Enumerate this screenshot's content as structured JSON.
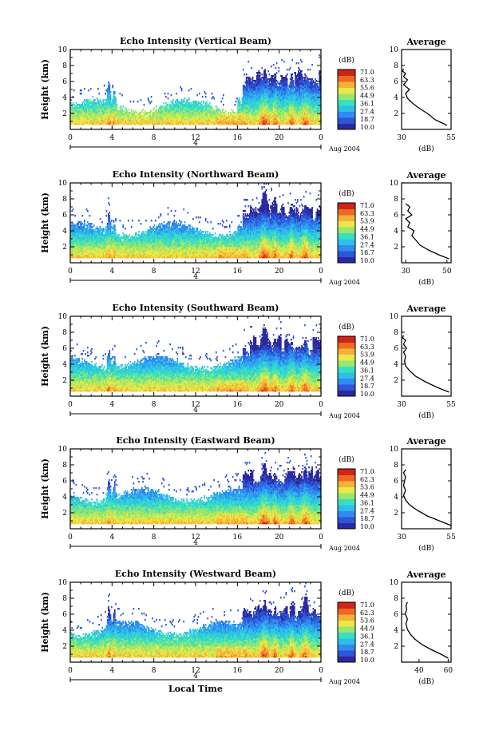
{
  "colors": {
    "colormap": [
      "#2a2a9e",
      "#2f55d8",
      "#2f8cf0",
      "#2ebfe8",
      "#38e0c0",
      "#9be66a",
      "#e8e848",
      "#f6b038",
      "#ee6a22",
      "#d0241a"
    ]
  },
  "chart_data": [
    {
      "type": "heatmap",
      "title": "Echo Intensity (Vertical Beam)",
      "ylabel": "Height (km)",
      "xlabel": "",
      "x_ticks": [
        "0",
        "4",
        "8",
        "12",
        "16",
        "20",
        "0"
      ],
      "y_ticks": [
        "2",
        "4",
        "6",
        "8",
        "10"
      ],
      "xlim": [
        0,
        24
      ],
      "ylim": [
        0,
        10
      ],
      "date_marker": "4",
      "date_label": "Aug 2004",
      "colorbar": {
        "unit": "(dB)",
        "ticks": [
          "71.0",
          "63.3",
          "55.6",
          "44.9",
          "36.1",
          "27.4",
          "18.7",
          "10.0"
        ]
      },
      "profile": {
        "title": "Average",
        "xlabel": "(dB)",
        "x_ticks": [
          "30",
          "55"
        ],
        "xlim": [
          30,
          55
        ],
        "y_ticks": [
          "2",
          "4",
          "6",
          "8",
          "10"
        ],
        "ylim": [
          0,
          10
        ],
        "x": [
          53,
          47,
          43,
          38,
          35,
          33,
          32,
          34,
          31,
          33,
          31,
          32,
          30.5,
          31
        ],
        "y": [
          0.5,
          1.2,
          2.0,
          2.8,
          3.4,
          3.9,
          4.5,
          5.0,
          5.6,
          6.2,
          6.6,
          7.0,
          7.3,
          7.6
        ]
      }
    },
    {
      "type": "heatmap",
      "title": "Echo Intensity (Northward Beam)",
      "ylabel": "Height (km)",
      "xlabel": "",
      "x_ticks": [
        "0",
        "4",
        "8",
        "12",
        "16",
        "20",
        "0"
      ],
      "y_ticks": [
        "2",
        "4",
        "6",
        "8",
        "10"
      ],
      "xlim": [
        0,
        24
      ],
      "ylim": [
        0,
        10
      ],
      "date_marker": "4",
      "date_label": "Aug 2004",
      "colorbar": {
        "unit": "(dB)",
        "ticks": [
          "71.0",
          "63.3",
          "53.9",
          "44.9",
          "36.1",
          "27.4",
          "18.7",
          "10.0"
        ]
      },
      "profile": {
        "title": "Average",
        "xlabel": "(dB)",
        "x_ticks": [
          "30",
          "50"
        ],
        "xlim": [
          28,
          52
        ],
        "y_ticks": [
          "2",
          "4",
          "6",
          "8",
          "10"
        ],
        "ylim": [
          0,
          10
        ],
        "x": [
          51,
          46,
          41,
          37,
          35,
          33,
          34,
          31,
          32,
          30,
          33,
          31,
          32,
          30
        ],
        "y": [
          0.5,
          1.0,
          1.6,
          2.2,
          2.8,
          3.4,
          4.0,
          4.5,
          5.0,
          5.5,
          6.0,
          6.5,
          7.0,
          7.4
        ]
      }
    },
    {
      "type": "heatmap",
      "title": "Echo Intensity (Southward Beam)",
      "ylabel": "Height (km)",
      "xlabel": "",
      "x_ticks": [
        "0",
        "4",
        "8",
        "12",
        "16",
        "20",
        "0"
      ],
      "y_ticks": [
        "2",
        "4",
        "6",
        "8",
        "10"
      ],
      "xlim": [
        0,
        24
      ],
      "ylim": [
        0,
        10
      ],
      "date_marker": "4",
      "date_label": "Aug 2004",
      "colorbar": {
        "unit": "(dB)",
        "ticks": [
          "71.0",
          "63.3",
          "53.9",
          "44.9",
          "36.1",
          "27.4",
          "18.7",
          "10.0"
        ]
      },
      "profile": {
        "title": "Average",
        "xlabel": "(dB)",
        "x_ticks": [
          "30",
          "55"
        ],
        "xlim": [
          30,
          55
        ],
        "y_ticks": [
          "2",
          "4",
          "6",
          "8",
          "10"
        ],
        "ylim": [
          0,
          10
        ],
        "x": [
          54,
          48,
          42,
          37,
          34,
          32,
          31.5,
          32,
          31,
          32.5,
          31,
          32,
          30.5,
          31
        ],
        "y": [
          0.5,
          1.1,
          1.8,
          2.5,
          3.2,
          3.8,
          4.4,
          5.0,
          5.5,
          6.0,
          6.5,
          7.0,
          7.3,
          7.6
        ]
      }
    },
    {
      "type": "heatmap",
      "title": "Echo Intensity (Eastward Beam)",
      "ylabel": "Height (km)",
      "xlabel": "",
      "x_ticks": [
        "0",
        "4",
        "8",
        "12",
        "16",
        "20",
        "0"
      ],
      "y_ticks": [
        "2",
        "4",
        "6",
        "8",
        "10"
      ],
      "xlim": [
        0,
        24
      ],
      "ylim": [
        0,
        10
      ],
      "date_marker": "4",
      "date_label": "Aug 2004",
      "colorbar": {
        "unit": "(dB)",
        "ticks": [
          "71.0",
          "62.3",
          "53.6",
          "44.9",
          "36.1",
          "27.4",
          "18.7",
          "10.0"
        ]
      },
      "profile": {
        "title": "Average",
        "xlabel": "(dB)",
        "x_ticks": [
          "30",
          "55"
        ],
        "xlim": [
          30,
          55
        ],
        "y_ticks": [
          "2",
          "4",
          "6",
          "8",
          "10"
        ],
        "ylim": [
          0,
          10
        ],
        "x": [
          55,
          49,
          43,
          38,
          34,
          32,
          31,
          32,
          31,
          31.5,
          32,
          31,
          32
        ],
        "y": [
          0.4,
          1.0,
          1.6,
          2.3,
          3.0,
          3.6,
          4.2,
          4.8,
          5.4,
          6.0,
          6.5,
          7.0,
          7.4
        ]
      }
    },
    {
      "type": "heatmap",
      "title": "Echo Intensity (Westward Beam)",
      "ylabel": "Height (km)",
      "xlabel": "Local Time",
      "x_ticks": [
        "0",
        "4",
        "8",
        "12",
        "16",
        "20",
        "0"
      ],
      "y_ticks": [
        "2",
        "4",
        "6",
        "8",
        "10"
      ],
      "xlim": [
        0,
        24
      ],
      "ylim": [
        0,
        10
      ],
      "date_marker": "4",
      "date_label": "Aug 2004",
      "colorbar": {
        "unit": "(dB)",
        "ticks": [
          "71.0",
          "62.3",
          "53.6",
          "44.9",
          "36.1",
          "27.4",
          "18.7",
          "10.0"
        ]
      },
      "profile": {
        "title": "Average",
        "xlabel": "(dB)",
        "x_ticks": [
          "40",
          "60"
        ],
        "xlim": [
          28,
          62
        ],
        "y_ticks": [
          "2",
          "4",
          "6",
          "8",
          "10"
        ],
        "ylim": [
          0,
          10
        ],
        "x": [
          60,
          55,
          48,
          42,
          37,
          34,
          32,
          31,
          32,
          30.5,
          31.5,
          31,
          32
        ],
        "y": [
          0.5,
          1.0,
          1.6,
          2.2,
          2.9,
          3.5,
          4.1,
          4.8,
          5.4,
          6.0,
          6.6,
          7.1,
          7.5
        ]
      }
    }
  ]
}
